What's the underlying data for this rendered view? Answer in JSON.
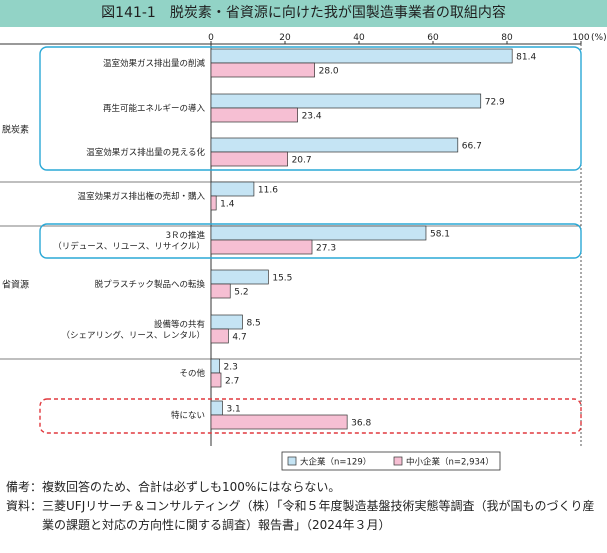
{
  "header": {
    "title": "図141-1　脱炭素・省資源に向けた我が国製造事業者の取組内容"
  },
  "colors": {
    "large": "#c5e4f4",
    "small": "#f6bfd3",
    "bar_stroke": "#333333",
    "frame_solid": "#2aa8d6",
    "frame_dashed": "#e0393e",
    "header_band": "#92d3c6"
  },
  "chart_data": {
    "type": "bar",
    "orientation": "horizontal",
    "x_unit": "(%)",
    "xlim": [
      0,
      100
    ],
    "xticks": [
      0,
      20,
      40,
      60,
      80,
      100
    ],
    "categories": [
      "温室効果ガス排出量の削減",
      "再生可能エネルギーの導入",
      "温室効果ガス排出量の見える化",
      "温室効果ガス排出権の売却・購入",
      "3Ｒの推進\n（リデュース、リユース、リサイクル）",
      "脱プラスチック製品への転換",
      "設備等の共有\n（シェアリング、リース、レンタル）",
      "その他",
      "特にない"
    ],
    "groups": [
      {
        "label": "脱炭素",
        "from": 0,
        "to": 3
      },
      {
        "label": "省資源",
        "from": 4,
        "to": 6
      }
    ],
    "series": [
      {
        "name": "大企業（n=129）",
        "values": [
          81.4,
          72.9,
          66.7,
          11.6,
          58.1,
          15.5,
          8.5,
          2.3,
          3.1
        ]
      },
      {
        "name": "中小企業（n=2,934）",
        "values": [
          28.0,
          23.4,
          20.7,
          1.4,
          27.3,
          5.2,
          4.7,
          2.7,
          36.8
        ]
      }
    ],
    "highlight_solid": [
      [
        0,
        2
      ],
      [
        4,
        4
      ]
    ],
    "highlight_dashed": [
      [
        8,
        8
      ]
    ],
    "legend_position": "bottom-right"
  },
  "notes": {
    "remark_label": "備考：",
    "remark_text": "複数回答のため、合計は必ずしも100%にはならない。",
    "source_label": "資料：",
    "source_text": "三菱UFJリサーチ＆コンサルティング（株）「令和５年度製造基盤技術実態等調査（我が国ものづくり産業の課題と対応の方向性に関する調査）報告書」（2024年３月）"
  }
}
